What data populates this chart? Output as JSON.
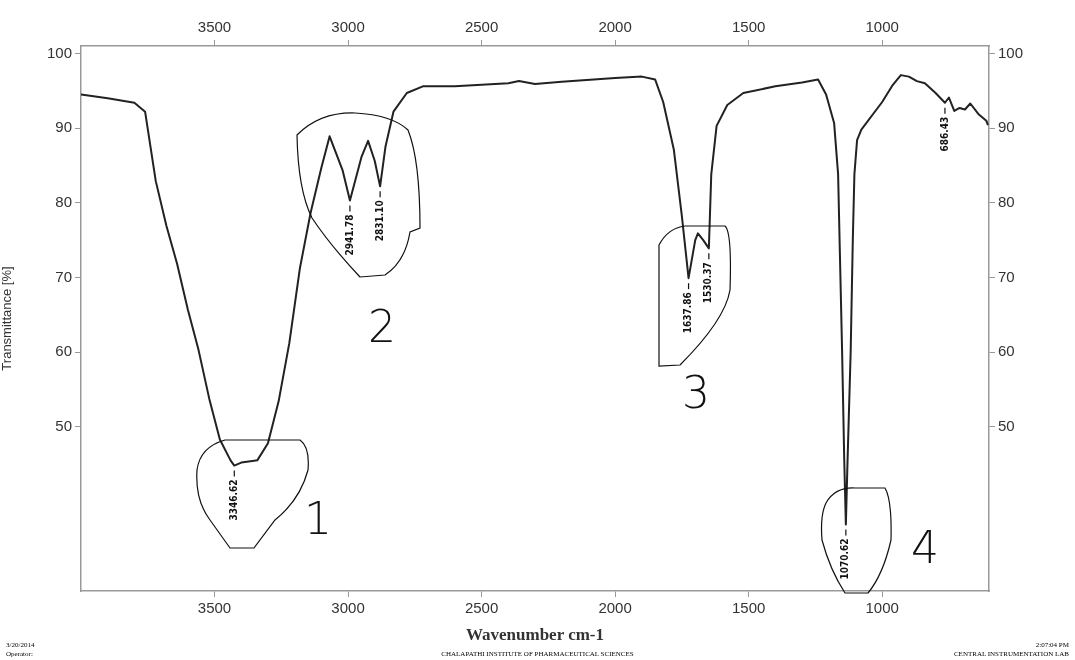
{
  "chart_data": {
    "type": "line",
    "xlabel": "Wavenumber cm-1",
    "ylabel": "Transmittance [%]",
    "xlim": [
      4000,
      600
    ],
    "xticks": [
      3500,
      3000,
      2500,
      2000,
      1500,
      1000
    ],
    "x2lim": [
      4000,
      600
    ],
    "x2ticks": [
      3500,
      3000,
      2500,
      2000,
      1500,
      1000
    ],
    "ylim": [
      28,
      101
    ],
    "yticks": [
      50,
      60,
      70,
      80,
      90,
      100
    ],
    "y2lim": [
      28,
      101
    ],
    "y2ticks": [
      50,
      60,
      70,
      80,
      90,
      100
    ],
    "grid": false,
    "legend": false,
    "marker": "none",
    "line_style": "solid",
    "x": [
      4000,
      3900,
      3800,
      3760,
      3720,
      3680,
      3640,
      3600,
      3560,
      3520,
      3480,
      3440,
      3426,
      3400,
      3340,
      3300,
      3260,
      3220,
      3180,
      3140,
      3100,
      3069,
      3020,
      2993,
      2950,
      2925,
      2900,
      2880,
      2860,
      2830,
      2780,
      2720,
      2600,
      2500,
      2400,
      2360,
      2300,
      2200,
      2000,
      1900,
      1850,
      1820,
      1780,
      1750,
      1725,
      1700,
      1690,
      1670,
      1649,
      1640,
      1620,
      1580,
      1520,
      1400,
      1300,
      1240,
      1210,
      1180,
      1165,
      1150,
      1142,
      1136,
      1130,
      1118,
      1110,
      1104,
      1094,
      1078,
      1000,
      960,
      930,
      900,
      870,
      840,
      800,
      765,
      750,
      730,
      710,
      690,
      670,
      640,
      610,
      605
    ],
    "series": [
      {
        "color": "#222222",
        "values": [
          94.5,
          94.0,
          93.4,
          92.2,
          82.9,
          76.9,
          71.8,
          65.7,
          60.3,
          53.8,
          48.3,
          45.5,
          44.8,
          45.2,
          45.5,
          47.8,
          53.4,
          61.2,
          71.3,
          78.7,
          84.7,
          88.9,
          84.3,
          80.3,
          86.1,
          88.3,
          85.6,
          82.2,
          87.5,
          92.2,
          94.7,
          95.6,
          95.6,
          95.8,
          96.0,
          96.3,
          95.9,
          96.2,
          96.7,
          96.9,
          96.5,
          93.5,
          87.1,
          78.2,
          69.9,
          75.0,
          75.9,
          75.0,
          73.9,
          83.8,
          90.3,
          93.1,
          94.7,
          95.6,
          96.1,
          96.5,
          94.5,
          90.7,
          83.8,
          60.0,
          45.5,
          36.9,
          45.0,
          60.0,
          75.0,
          83.8,
          88.4,
          89.8,
          93.5,
          95.8,
          97.1,
          96.9,
          96.3,
          96.0,
          94.7,
          93.4,
          94.1,
          92.3,
          92.7,
          92.5,
          93.3,
          91.9,
          91.0,
          90.5
        ]
      }
    ],
    "annotations": [
      {
        "text": "3346.62",
        "x": 3426,
        "y": 44.8
      },
      {
        "text": "2941.78",
        "x": 2993,
        "y": 80.3
      },
      {
        "text": "2831.10",
        "x": 2880,
        "y": 82.2
      },
      {
        "text": "1637.86",
        "x": 1725,
        "y": 69.9
      },
      {
        "text": "1530.37",
        "x": 1649,
        "y": 73.9
      },
      {
        "text": "1070.62",
        "x": 1136,
        "y": 36.9
      },
      {
        "text": "686.43",
        "x": 765,
        "y": 93.4
      },
      "1",
      "2",
      "3",
      "4",
      "3/20/2014",
      "Operator:",
      "CHALAPATHI INSTITUTE OF PHARMACEUTICAL SCIENCES",
      "2:07:04 PM",
      "CENTRAL INSTRUMENTATION LAB"
    ]
  }
}
